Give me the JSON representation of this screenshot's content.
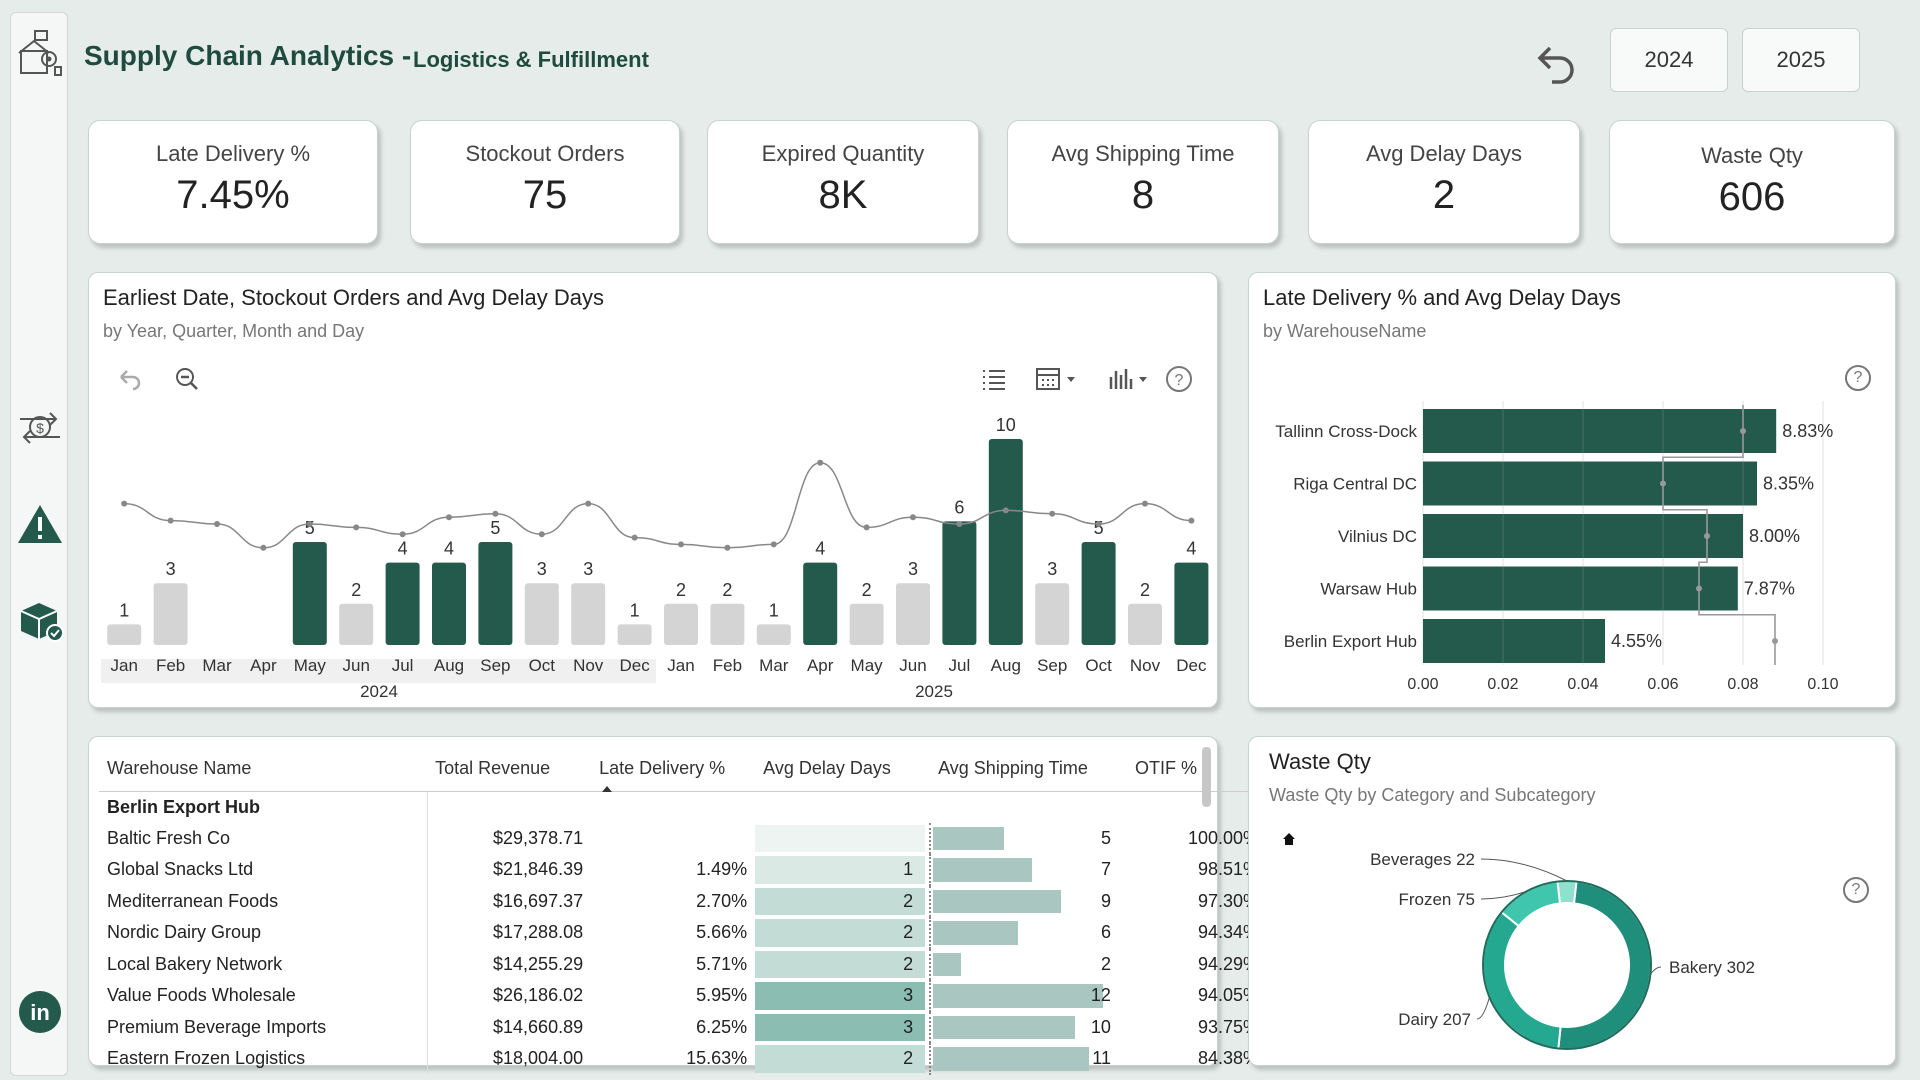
{
  "header": {
    "title": "Supply Chain Analytics -",
    "subtitle": "Logistics & Fulfillment",
    "years": [
      "2024",
      "2025"
    ]
  },
  "kpis": [
    {
      "label": "Late Delivery %",
      "value": "7.45%"
    },
    {
      "label": "Stockout Orders",
      "value": "75"
    },
    {
      "label": "Expired Quantity",
      "value": "8K"
    },
    {
      "label": "Avg Shipping Time",
      "value": "8"
    },
    {
      "label": "Avg Delay Days",
      "value": "2"
    },
    {
      "label": "Waste Qty",
      "value": "606"
    }
  ],
  "colors": {
    "accent": "#1f4b3e",
    "bar_dark": "#245a4b",
    "bar_light": "#d4d4d4",
    "teal": "#2bb9a0"
  },
  "timeline": {
    "title": "Earliest Date, Stockout Orders and Avg Delay Days",
    "subtitle": "by Year, Quarter, Month and Day"
  },
  "warehouse_chart": {
    "title": "Late Delivery % and Avg Delay Days",
    "subtitle": "by WarehouseName"
  },
  "waste_chart": {
    "title": "Waste Qty",
    "subtitle": "Waste Qty by Category and Subcategory"
  },
  "chart_data": [
    {
      "type": "bar",
      "categories": [
        "Jan",
        "Feb",
        "Mar",
        "Apr",
        "May",
        "Jun",
        "Jul",
        "Aug",
        "Sep",
        "Oct",
        "Nov",
        "Dec",
        "Jan",
        "Feb",
        "Mar",
        "Apr",
        "May",
        "Jun",
        "Jul",
        "Aug",
        "Sep",
        "Oct",
        "Nov",
        "Dec"
      ],
      "year_labels": [
        "2024",
        "2025"
      ],
      "series": [
        {
          "values": [
            1,
            3,
            null,
            null,
            5,
            2,
            4,
            4,
            5,
            3,
            3,
            1,
            2,
            2,
            1,
            4,
            2,
            3,
            6,
            10,
            3,
            5,
            2,
            4
          ],
          "highlight": [
            false,
            false,
            false,
            false,
            true,
            false,
            true,
            true,
            true,
            false,
            false,
            false,
            false,
            false,
            false,
            true,
            false,
            false,
            true,
            true,
            false,
            true,
            false,
            true
          ]
        },
        {
          "type": "line",
          "values": [
            2.1,
            1.6,
            1.5,
            0.8,
            1.5,
            1.4,
            1.2,
            1.7,
            1.8,
            1.2,
            2.1,
            1.1,
            0.9,
            0.8,
            0.9,
            3.3,
            1.4,
            1.7,
            1.5,
            1.9,
            1.8,
            1.5,
            2.1,
            1.6
          ]
        }
      ]
    },
    {
      "type": "bar",
      "orientation": "horizontal",
      "categories": [
        "Tallinn Cross-Dock",
        "Riga Central DC",
        "Vilnius DC",
        "Warsaw Hub",
        "Berlin Export Hub"
      ],
      "values": [
        0.0883,
        0.0835,
        0.08,
        0.0787,
        0.0455
      ],
      "labels": [
        "8.83%",
        "8.35%",
        "8.00%",
        "7.87%",
        "4.55%"
      ],
      "line_values": [
        0.08,
        0.06,
        0.071,
        0.069,
        0.088
      ],
      "xticks": [
        "0.00",
        "0.02",
        "0.04",
        "0.06",
        "0.08",
        "0.10"
      ],
      "xlim": [
        0,
        0.1
      ]
    },
    {
      "type": "pie",
      "style": "donut",
      "categories": [
        "Bakery",
        "Dairy",
        "Frozen",
        "Beverages"
      ],
      "values": [
        302,
        207,
        75,
        22
      ],
      "labels": [
        "Bakery 302",
        "Dairy 207",
        "Frozen 75",
        "Beverages 22"
      ]
    }
  ],
  "table": {
    "columns": [
      "Warehouse Name",
      "Total Revenue",
      "Late Delivery %",
      "Avg Delay Days",
      "Avg Shipping Time",
      "OTIF %"
    ],
    "group": "Berlin Export Hub",
    "rows": [
      {
        "name": "Baltic Fresh Co",
        "revenue": "$29,378.71",
        "late": "",
        "delay": "",
        "delay_level": 0,
        "ship": "5",
        "ship_value": 5,
        "otif": "100.00%"
      },
      {
        "name": "Global Snacks Ltd",
        "revenue": "$21,846.39",
        "late": "1.49%",
        "delay": "1",
        "delay_level": 1,
        "ship": "7",
        "ship_value": 7,
        "otif": "98.51%"
      },
      {
        "name": "Mediterranean Foods",
        "revenue": "$16,697.37",
        "late": "2.70%",
        "delay": "2",
        "delay_level": 2,
        "ship": "9",
        "ship_value": 9,
        "otif": "97.30%"
      },
      {
        "name": "Nordic Dairy Group",
        "revenue": "$17,288.08",
        "late": "5.66%",
        "delay": "2",
        "delay_level": 2,
        "ship": "6",
        "ship_value": 6,
        "otif": "94.34%"
      },
      {
        "name": "Local Bakery Network",
        "revenue": "$14,255.29",
        "late": "5.71%",
        "delay": "2",
        "delay_level": 2,
        "ship": "2",
        "ship_value": 2,
        "otif": "94.29%"
      },
      {
        "name": "Value Foods Wholesale",
        "revenue": "$26,186.02",
        "late": "5.95%",
        "delay": "3",
        "delay_level": 3,
        "ship": "12",
        "ship_value": 12,
        "otif": "94.05%"
      },
      {
        "name": "Premium Beverage Imports",
        "revenue": "$14,660.89",
        "late": "6.25%",
        "delay": "3",
        "delay_level": 3,
        "ship": "10",
        "ship_value": 10,
        "otif": "93.75%"
      },
      {
        "name": "Eastern Frozen Logistics",
        "revenue": "$18,004.00",
        "late": "15.63%",
        "delay": "2",
        "delay_level": 2,
        "ship": "11",
        "ship_value": 11,
        "otif": "84.38%"
      }
    ]
  }
}
